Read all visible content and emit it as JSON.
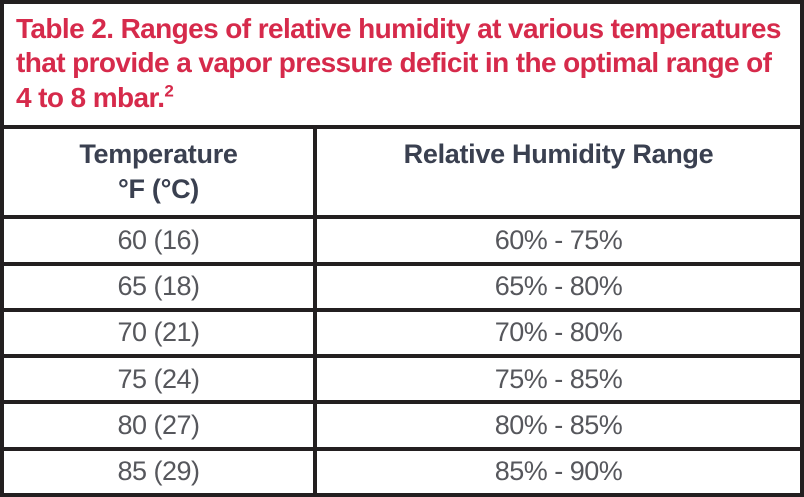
{
  "title": {
    "text": "Table 2. Ranges of relative humidity at various temperatures that provide a vapor pressure deficit in the optimal range of 4 to 8 mbar.",
    "footnote_marker": "2"
  },
  "table": {
    "headers": [
      {
        "line1": "Temperature",
        "line2": "°F (°C)"
      },
      {
        "label": "Relative Humidity Range"
      }
    ],
    "rows": [
      {
        "temperature": "60 (16)",
        "humidity": "60% - 75%"
      },
      {
        "temperature": "65 (18)",
        "humidity": "65% - 80%"
      },
      {
        "temperature": "70 (21)",
        "humidity": "70% - 80%"
      },
      {
        "temperature": "75 (24)",
        "humidity": "75% - 85%"
      },
      {
        "temperature": "80 (27)",
        "humidity": "80% - 85%"
      },
      {
        "temperature": "85 (29)",
        "humidity": "85% - 90%"
      }
    ]
  },
  "colors": {
    "title_red": "#d62a4b",
    "border_dark": "#231f20",
    "header_text": "#3a4050",
    "data_text": "#56575c"
  },
  "chart_data": {
    "type": "table",
    "title": "Table 2. Ranges of relative humidity at various temperatures that provide a vapor pressure deficit in the optimal range of 4 to 8 mbar.",
    "footnote_marker": "2",
    "columns": [
      "Temperature °F (°C)",
      "Relative Humidity Range"
    ],
    "rows": [
      [
        "60 (16)",
        "60% - 75%"
      ],
      [
        "65 (18)",
        "65% - 80%"
      ],
      [
        "70 (21)",
        "70% - 80%"
      ],
      [
        "75 (24)",
        "75% - 85%"
      ],
      [
        "80 (27)",
        "80% - 85%"
      ],
      [
        "85 (29)",
        "85% - 90%"
      ]
    ],
    "temperatures_f": [
      60,
      65,
      70,
      75,
      80,
      85
    ],
    "temperatures_c": [
      16,
      18,
      21,
      24,
      27,
      29
    ],
    "humidity_min_pct": [
      60,
      65,
      70,
      75,
      80,
      85
    ],
    "humidity_max_pct": [
      75,
      80,
      80,
      85,
      85,
      90
    ]
  }
}
